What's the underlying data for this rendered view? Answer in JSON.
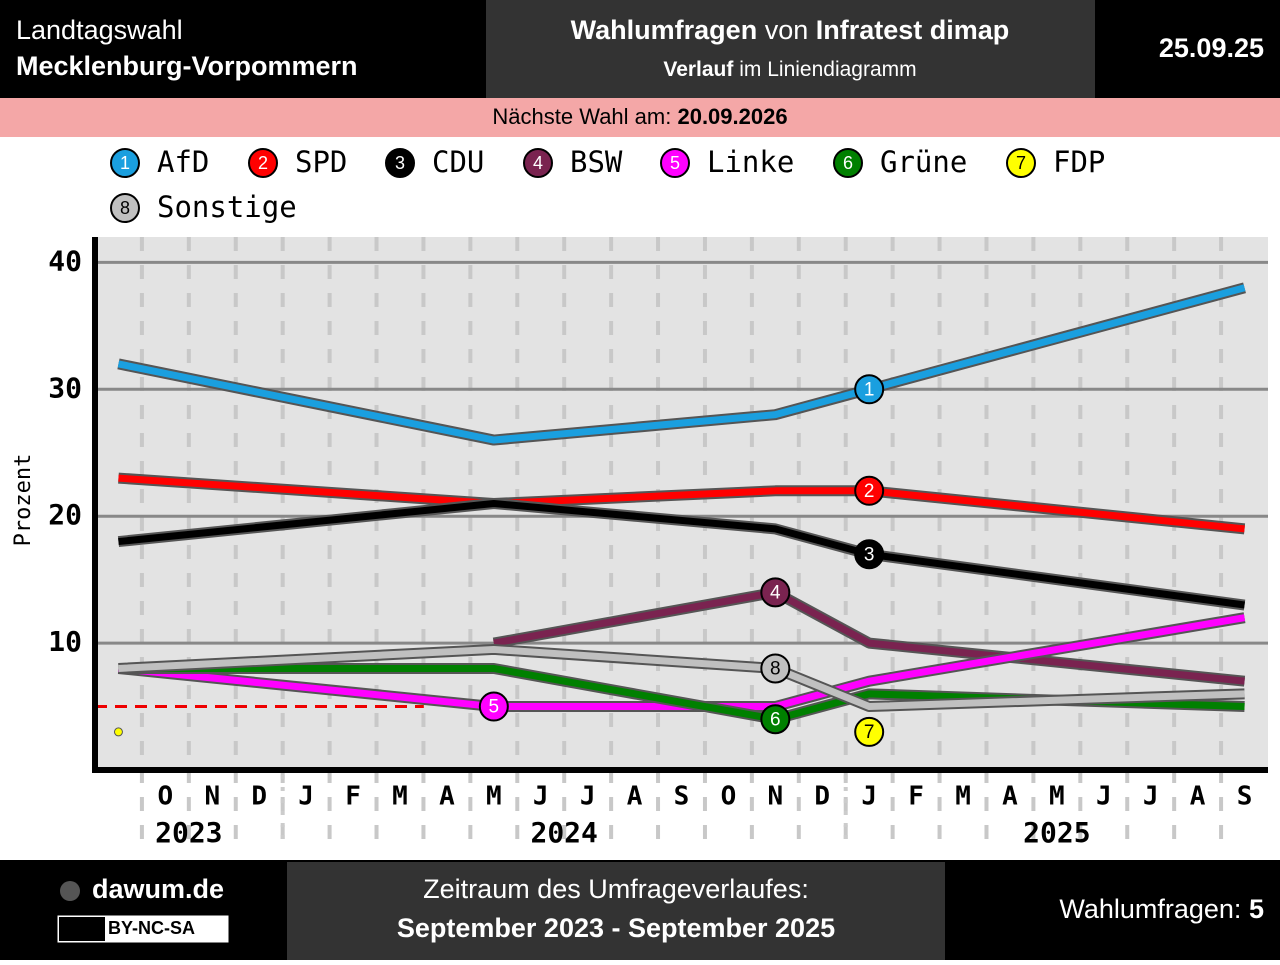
{
  "header": {
    "region_line1": "Landtagswahl",
    "region_line2": "Mecklenburg-Vorpommern",
    "title_part1": "Wahlumfragen",
    "title_part2": "von",
    "title_part3": "Infratest dimap",
    "subtitle_part1": "Verlauf",
    "subtitle_part2": "im Liniendiagramm",
    "date": "25.09.25",
    "next_election_label": "Nächste Wahl am:",
    "next_election_date": "20.09.2026"
  },
  "footer": {
    "site": "dawum.de",
    "license": "BY-NC-SA",
    "period_label": "Zeitraum des Umfrageverlaufes:",
    "period": "September 2023 - September 2025",
    "poll_count_label": "Wahlumfragen:",
    "poll_count": 5
  },
  "chart_data": {
    "type": "line",
    "y_label": "Prozent",
    "x": [
      "2023-09",
      "2024-05",
      "2024-11",
      "2025-01",
      "2025-09"
    ],
    "xlim": [
      "2023-09",
      "2025-09"
    ],
    "xticks": [
      {
        "value": "2023-10",
        "label": "O"
      },
      {
        "value": "2023-11",
        "label": "N"
      },
      {
        "value": "2023-12",
        "label": "D"
      },
      {
        "value": "2024-01",
        "label": "J"
      },
      {
        "value": "2024-02",
        "label": "F"
      },
      {
        "value": "2024-03",
        "label": "M"
      },
      {
        "value": "2024-04",
        "label": "A"
      },
      {
        "value": "2024-05",
        "label": "M"
      },
      {
        "value": "2024-06",
        "label": "J"
      },
      {
        "value": "2024-07",
        "label": "J"
      },
      {
        "value": "2024-08",
        "label": "A"
      },
      {
        "value": "2024-09",
        "label": "S"
      },
      {
        "value": "2024-10",
        "label": "O"
      },
      {
        "value": "2024-11",
        "label": "N"
      },
      {
        "value": "2024-12",
        "label": "D"
      },
      {
        "value": "2025-01",
        "label": "J"
      },
      {
        "value": "2025-02",
        "label": "F"
      },
      {
        "value": "2025-03",
        "label": "M"
      },
      {
        "value": "2025-04",
        "label": "A"
      },
      {
        "value": "2025-05",
        "label": "M"
      },
      {
        "value": "2025-06",
        "label": "J"
      },
      {
        "value": "2025-07",
        "label": "J"
      },
      {
        "value": "2025-08",
        "label": "A"
      },
      {
        "value": "2025-09",
        "label": "S"
      }
    ],
    "years": [
      "2023",
      "2024",
      "2025"
    ],
    "ylim": [
      0,
      42
    ],
    "yticks": [
      10,
      20,
      30,
      40
    ],
    "threshold": 5,
    "series": [
      {
        "name": "AfD",
        "number": "1",
        "color": "#1a9fdf",
        "values": [
          32,
          26,
          28,
          30,
          38
        ]
      },
      {
        "name": "SPD",
        "number": "2",
        "color": "#ff0000",
        "values": [
          23,
          21,
          22,
          22,
          19
        ]
      },
      {
        "name": "CDU",
        "number": "3",
        "color": "#000000",
        "values": [
          18,
          21,
          19,
          17,
          13
        ]
      },
      {
        "name": "BSW",
        "number": "4",
        "color": "#7a2350",
        "values": [
          null,
          10,
          14,
          10,
          7
        ]
      },
      {
        "name": "Linke",
        "number": "5",
        "color": "#ff00ff",
        "values": [
          8,
          5,
          5,
          7,
          12
        ]
      },
      {
        "name": "Grüne",
        "number": "6",
        "color": "#008000",
        "values": [
          8,
          8,
          4,
          6,
          5
        ]
      },
      {
        "name": "FDP",
        "number": "7",
        "color": "#ffff00",
        "values": [
          3,
          null,
          null,
          3,
          null
        ]
      },
      {
        "name": "Sonstige",
        "number": "8",
        "color": "#c0c0c0",
        "values": [
          8,
          9.5,
          8,
          5,
          6
        ]
      }
    ]
  }
}
